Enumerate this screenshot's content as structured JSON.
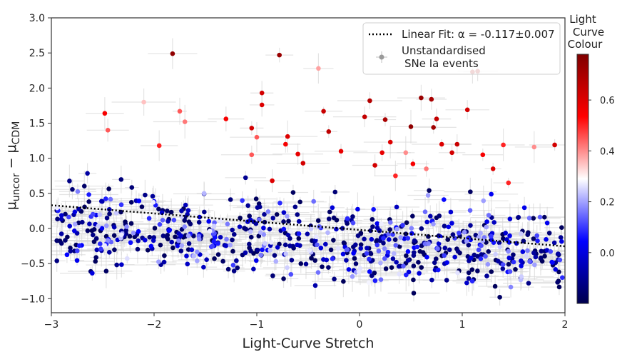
{
  "chart_data": {
    "type": "scatter",
    "title": "",
    "xlabel": "Light-Curve Stretch",
    "ylabel_main": "μ",
    "ylabel_sub1": "uncor",
    "ylabel_sep": " − ",
    "ylabel_main2": "μ",
    "ylabel_sub2": "CDM",
    "xlim": [
      -3,
      2
    ],
    "ylim": [
      -1.2,
      3.0
    ],
    "xticks": [
      -3,
      -2,
      -1,
      0,
      1,
      2
    ],
    "yticks": [
      -1.0,
      -0.5,
      0.0,
      0.5,
      1.0,
      1.5,
      2.0,
      2.5,
      3.0
    ],
    "xtick_labels": [
      "−3",
      "−2",
      "−1",
      "0",
      "1",
      "2"
    ],
    "ytick_labels": [
      "−1.0",
      "−0.5",
      "0.0",
      "0.5",
      "1.0",
      "1.5",
      "2.0",
      "2.5",
      "3.0"
    ],
    "grid": false,
    "legend": {
      "placement": "top-right",
      "fit_label": "Linear Fit: α = -0.117±0.007",
      "points_label_line1": "Unstandardised",
      "points_label_line2": "SNe Ia events"
    },
    "fit_line": {
      "slope": -0.117,
      "intercept": -0.02,
      "x_range": [
        -3,
        2
      ]
    },
    "colorbar": {
      "title_lines": [
        "Light",
        "Curve",
        "Colour"
      ],
      "range": [
        -0.2,
        0.78
      ],
      "ticks": [
        0.0,
        0.2,
        0.4,
        0.6
      ],
      "tick_labels": [
        "0.0",
        "0.2",
        "0.4",
        "0.6"
      ],
      "colormap": "seismic"
    },
    "colors": {
      "errorbar": "#d6d6d6",
      "fit_line": "#000000",
      "legend_marker": "#9a9a9a"
    },
    "highlight_points": [
      {
        "x": -1.82,
        "y": 2.49,
        "c": 0.75
      },
      {
        "x": -0.78,
        "y": 2.47,
        "c": 0.73
      },
      {
        "x": -0.4,
        "y": 2.28,
        "c": 0.38
      },
      {
        "x": 1.1,
        "y": 2.23,
        "c": 0.7
      },
      {
        "x": 1.15,
        "y": 2.24,
        "c": 0.72
      },
      {
        "x": -0.95,
        "y": 1.93,
        "c": 0.62
      },
      {
        "x": -0.95,
        "y": 1.76,
        "c": 0.6
      },
      {
        "x": -2.48,
        "y": 1.64,
        "c": 0.55
      },
      {
        "x": -2.45,
        "y": 1.4,
        "c": 0.45
      },
      {
        "x": -2.1,
        "y": 1.8,
        "c": 0.35
      },
      {
        "x": -1.75,
        "y": 1.67,
        "c": 0.45
      },
      {
        "x": -1.7,
        "y": 1.52,
        "c": 0.42
      },
      {
        "x": -1.3,
        "y": 1.56,
        "c": 0.55
      },
      {
        "x": -1.05,
        "y": 1.43,
        "c": 0.62
      },
      {
        "x": -0.35,
        "y": 1.67,
        "c": 0.64
      },
      {
        "x": -0.3,
        "y": 1.38,
        "c": 0.66
      },
      {
        "x": 0.1,
        "y": 1.82,
        "c": 0.68
      },
      {
        "x": 0.05,
        "y": 1.59,
        "c": 0.65
      },
      {
        "x": 0.25,
        "y": 1.55,
        "c": 0.7
      },
      {
        "x": 0.6,
        "y": 1.86,
        "c": 0.73
      },
      {
        "x": 0.7,
        "y": 1.84,
        "c": 0.7
      },
      {
        "x": 0.75,
        "y": 1.56,
        "c": 0.65
      },
      {
        "x": 0.72,
        "y": 1.44,
        "c": 0.72
      },
      {
        "x": 1.05,
        "y": 1.69,
        "c": 0.62
      },
      {
        "x": 0.5,
        "y": 1.45,
        "c": 0.75
      },
      {
        "x": -1.05,
        "y": 1.05,
        "c": 0.45
      },
      {
        "x": -0.7,
        "y": 1.31,
        "c": 0.6
      },
      {
        "x": -0.72,
        "y": 1.2,
        "c": 0.55
      },
      {
        "x": -0.6,
        "y": 1.06,
        "c": 0.58
      },
      {
        "x": -0.55,
        "y": 0.93,
        "c": 0.62
      },
      {
        "x": 0.3,
        "y": 1.23,
        "c": 0.6
      },
      {
        "x": 0.22,
        "y": 1.08,
        "c": 0.58
      },
      {
        "x": 0.9,
        "y": 1.08,
        "c": 0.62
      },
      {
        "x": 0.95,
        "y": 1.2,
        "c": 0.64
      },
      {
        "x": 1.4,
        "y": 1.19,
        "c": 0.5
      },
      {
        "x": 1.7,
        "y": 1.16,
        "c": 0.4
      },
      {
        "x": 1.9,
        "y": 1.19,
        "c": 0.62
      },
      {
        "x": 1.3,
        "y": 0.85,
        "c": 0.6
      },
      {
        "x": 1.45,
        "y": 0.65,
        "c": 0.5
      },
      {
        "x": 0.45,
        "y": 1.08,
        "c": 0.4
      },
      {
        "x": 0.65,
        "y": 0.85,
        "c": 0.42
      },
      {
        "x": -1.95,
        "y": 1.18,
        "c": 0.5
      },
      {
        "x": -1.0,
        "y": 1.3,
        "c": 0.45
      },
      {
        "x": -0.18,
        "y": 1.1,
        "c": 0.58
      },
      {
        "x": 0.15,
        "y": 0.9,
        "c": 0.62
      },
      {
        "x": -0.85,
        "y": 0.68,
        "c": 0.6
      },
      {
        "x": 0.35,
        "y": 0.75,
        "c": 0.5
      },
      {
        "x": 0.52,
        "y": 0.92,
        "c": 0.55
      },
      {
        "x": 0.8,
        "y": 1.2,
        "c": 0.6
      },
      {
        "x": 1.2,
        "y": 1.05,
        "c": 0.55
      }
    ],
    "cluster": {
      "count": 720,
      "seed": 7,
      "x_range": [
        -2.95,
        1.98
      ],
      "y_center": -0.2,
      "y_spread": 0.28,
      "color_range": [
        -0.18,
        0.28
      ]
    }
  }
}
